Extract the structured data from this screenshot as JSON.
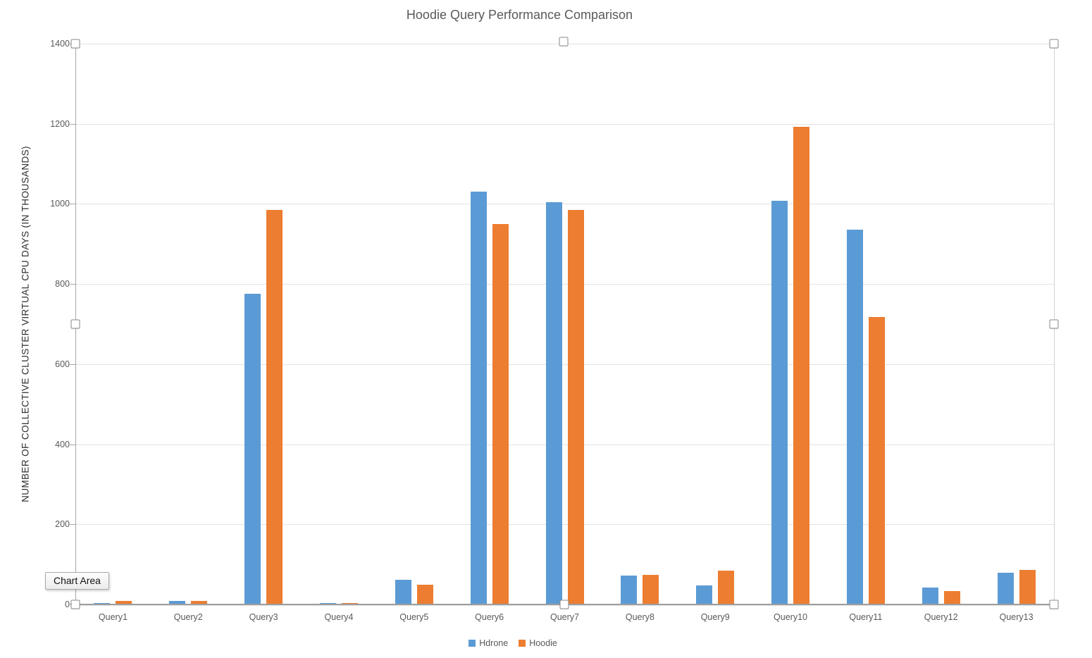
{
  "chart_data": {
    "type": "bar",
    "title": "Hoodie Query Performance Comparison",
    "ylabel": "NUMBER OF COLLECTIVE CLUSTER VIRTUAL CPU DAYS (IN THOUSANDS)",
    "xlabel": "",
    "categories": [
      "Query1",
      "Query2",
      "Query3",
      "Query4",
      "Query5",
      "Query6",
      "Query7",
      "Query8",
      "Query9",
      "Query10",
      "Query11",
      "Query12",
      "Query13"
    ],
    "series": [
      {
        "name": "Hdrone",
        "color": "#5B9BD5",
        "values": [
          4,
          8,
          775,
          3,
          62,
          1030,
          1005,
          73,
          47,
          1008,
          935,
          42,
          80
        ]
      },
      {
        "name": "Hoodie",
        "color": "#ED7D31",
        "values": [
          8,
          8,
          985,
          4,
          50,
          950,
          985,
          74,
          85,
          1192,
          718,
          33,
          87
        ]
      }
    ],
    "ylim": [
      0,
      1400
    ],
    "yticks": [
      0,
      200,
      400,
      600,
      800,
      1000,
      1200,
      1400
    ],
    "grid": "horizontal",
    "legend_position": "bottom-center"
  },
  "overlay": {
    "tooltip_label": "Chart Area"
  },
  "colors": {
    "series_hdrone": "#5B9BD5",
    "series_hoodie": "#ED7D31",
    "gridline": "#E2E2E2",
    "axis_line": "#A6A6A6",
    "label_text": "#595959"
  }
}
